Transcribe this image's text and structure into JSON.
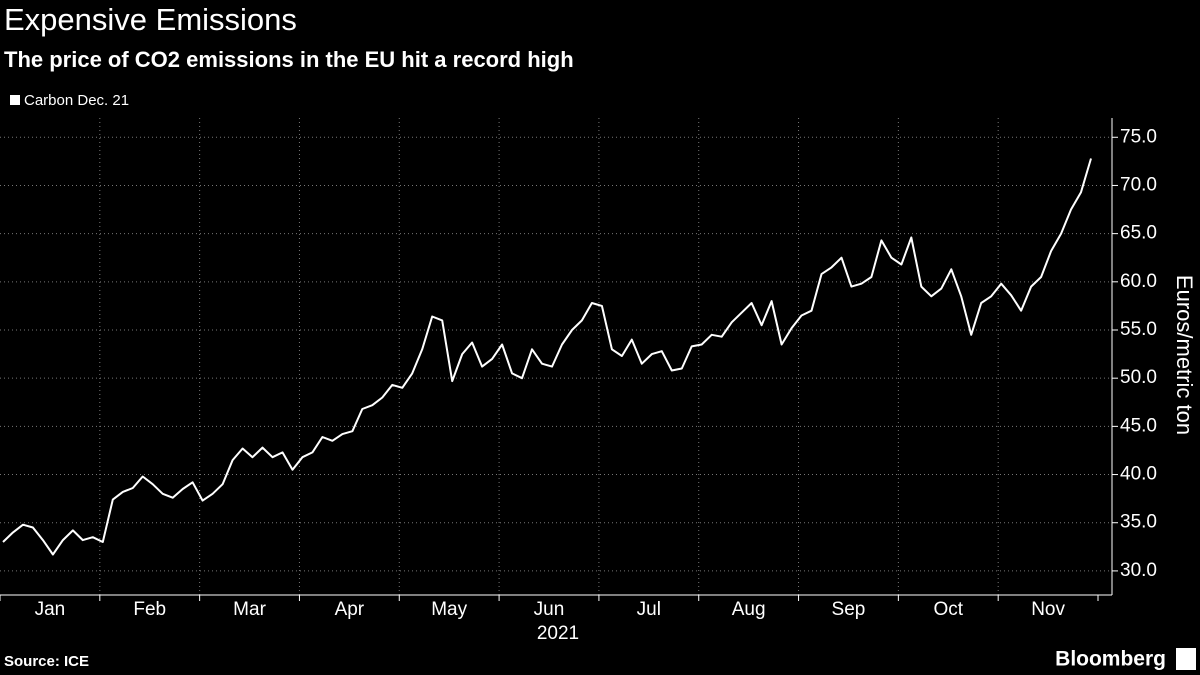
{
  "chart_data": {
    "type": "line",
    "title": "Expensive Emissions",
    "subtitle": "The price of CO2 emissions in the EU hit a record high",
    "source": "Source: ICE",
    "brand": "Bloomberg",
    "y_label": "Euros/metric ton",
    "year_label": "2021",
    "categories": [
      "Jan",
      "Feb",
      "Mar",
      "Apr",
      "May",
      "Jun",
      "Jul",
      "Aug",
      "Sep",
      "Oct",
      "Nov"
    ],
    "x": [
      "2021-01",
      "2021-01",
      "2021-01",
      "2021-01",
      "2021-01",
      "2021-01",
      "2021-01",
      "2021-01",
      "2021-01",
      "2021-01",
      "2021-02",
      "2021-02",
      "2021-02",
      "2021-02",
      "2021-02",
      "2021-02",
      "2021-02",
      "2021-02",
      "2021-02",
      "2021-02",
      "2021-03",
      "2021-03",
      "2021-03",
      "2021-03",
      "2021-03",
      "2021-03",
      "2021-03",
      "2021-03",
      "2021-03",
      "2021-03",
      "2021-04",
      "2021-04",
      "2021-04",
      "2021-04",
      "2021-04",
      "2021-04",
      "2021-04",
      "2021-04",
      "2021-04",
      "2021-04",
      "2021-05",
      "2021-05",
      "2021-05",
      "2021-05",
      "2021-05",
      "2021-05",
      "2021-05",
      "2021-05",
      "2021-05",
      "2021-05",
      "2021-06",
      "2021-06",
      "2021-06",
      "2021-06",
      "2021-06",
      "2021-06",
      "2021-06",
      "2021-06",
      "2021-06",
      "2021-06",
      "2021-07",
      "2021-07",
      "2021-07",
      "2021-07",
      "2021-07",
      "2021-07",
      "2021-07",
      "2021-07",
      "2021-07",
      "2021-07",
      "2021-08",
      "2021-08",
      "2021-08",
      "2021-08",
      "2021-08",
      "2021-08",
      "2021-08",
      "2021-08",
      "2021-08",
      "2021-08",
      "2021-09",
      "2021-09",
      "2021-09",
      "2021-09",
      "2021-09",
      "2021-09",
      "2021-09",
      "2021-09",
      "2021-09",
      "2021-09",
      "2021-10",
      "2021-10",
      "2021-10",
      "2021-10",
      "2021-10",
      "2021-10",
      "2021-10",
      "2021-10",
      "2021-10",
      "2021-10",
      "2021-11",
      "2021-11",
      "2021-11",
      "2021-11",
      "2021-11",
      "2021-11",
      "2021-11",
      "2021-11",
      "2021-11",
      "2021-11"
    ],
    "series": [
      {
        "name": "Carbon Dec. 21",
        "color": "#ffffff",
        "values": [
          33.0,
          34.0,
          34.8,
          34.5,
          33.2,
          31.7,
          33.2,
          34.2,
          33.2,
          33.5,
          33.0,
          37.4,
          38.2,
          38.6,
          39.8,
          39.0,
          38.0,
          37.6,
          38.5,
          39.2,
          37.3,
          38.0,
          39.0,
          41.5,
          42.7,
          41.8,
          42.8,
          41.8,
          42.3,
          40.5,
          41.8,
          42.3,
          43.9,
          43.5,
          44.2,
          44.5,
          46.8,
          47.2,
          48.0,
          49.3,
          49.0,
          50.5,
          53.0,
          56.4,
          56.0,
          49.7,
          52.5,
          53.7,
          51.2,
          52.0,
          53.5,
          50.5,
          50.0,
          53.0,
          51.5,
          51.2,
          53.5,
          55.0,
          56.0,
          57.8,
          57.5,
          53.0,
          52.3,
          54.0,
          51.5,
          52.5,
          52.8,
          50.8,
          51.0,
          53.3,
          53.5,
          54.5,
          54.3,
          55.8,
          56.8,
          57.8,
          55.5,
          58.0,
          53.5,
          55.2,
          56.5,
          57.0,
          60.8,
          61.5,
          62.5,
          59.5,
          59.8,
          60.5,
          64.3,
          62.5,
          61.8,
          64.6,
          59.5,
          58.5,
          59.3,
          61.3,
          58.5,
          54.5,
          57.8,
          58.5,
          59.8,
          58.6,
          57.0,
          59.5,
          60.5,
          63.2,
          65.0,
          67.5,
          69.3,
          72.8
        ]
      }
    ],
    "ylim": [
      27.5,
      77
    ],
    "yticks": [
      {
        "value": 30,
        "label": "30.0"
      },
      {
        "value": 35,
        "label": "35.0"
      },
      {
        "value": 40,
        "label": "40.0"
      },
      {
        "value": 45,
        "label": "45.0"
      },
      {
        "value": 50,
        "label": "50.0"
      },
      {
        "value": 55,
        "label": "55.0"
      },
      {
        "value": 60,
        "label": "60.0"
      },
      {
        "value": 65,
        "label": "65.0"
      },
      {
        "value": 70,
        "label": "70.0"
      },
      {
        "value": 75,
        "label": "75.0"
      }
    ],
    "grid": true,
    "legend": "top-left"
  }
}
